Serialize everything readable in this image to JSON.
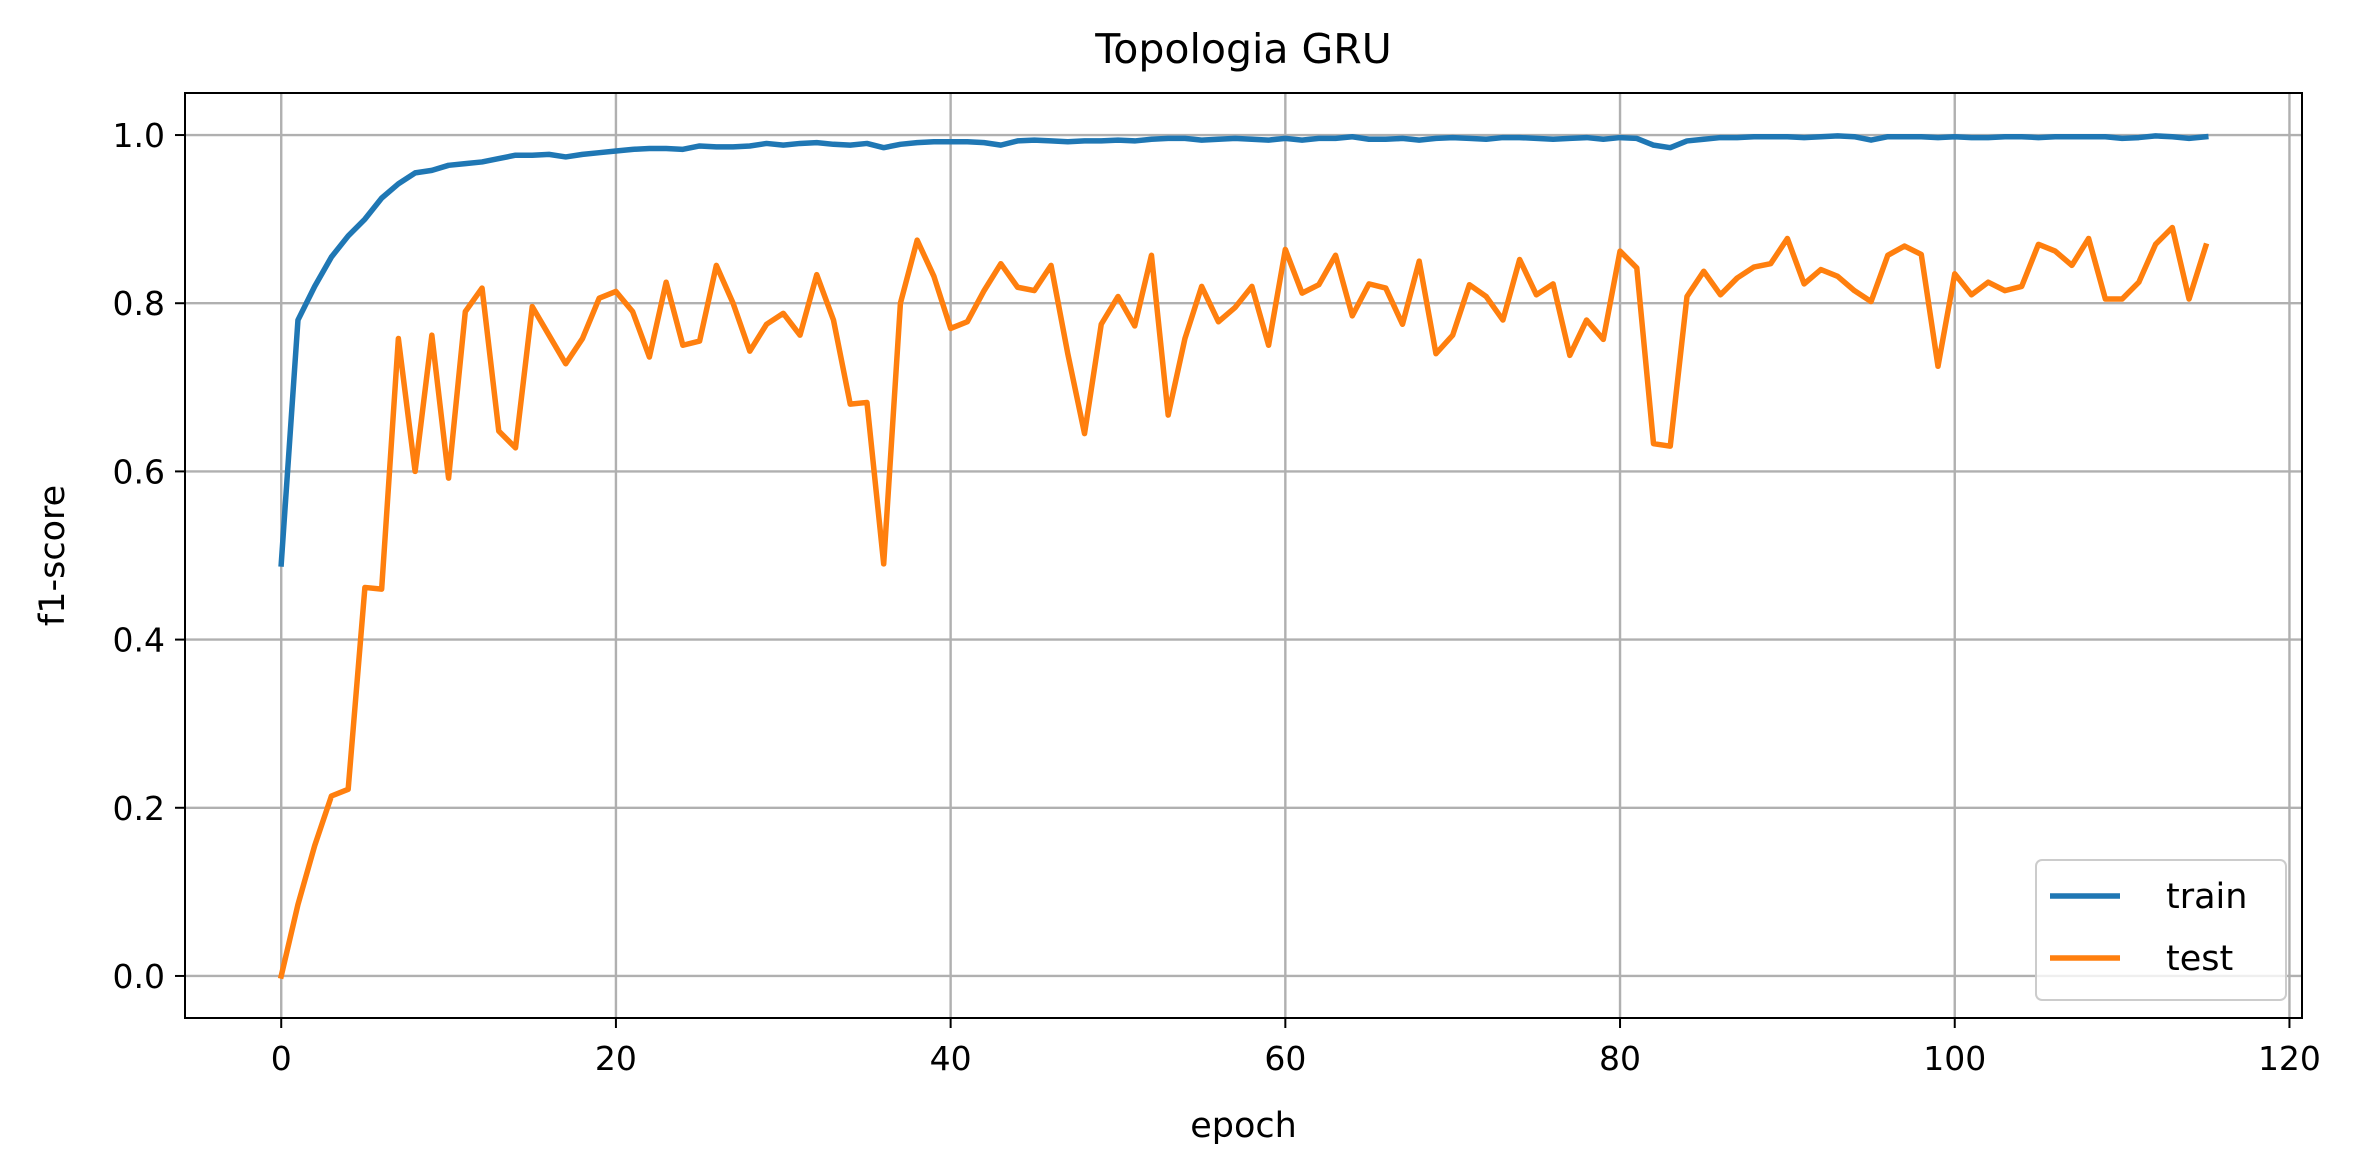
{
  "chart_data": {
    "type": "line",
    "title": "Topologia GRU",
    "xlabel": "epoch",
    "ylabel": "f1-score",
    "xlim": [
      -5.75,
      120.75
    ],
    "ylim": [
      -0.05,
      1.05
    ],
    "xticks": [
      0,
      20,
      40,
      60,
      80,
      100,
      120
    ],
    "yticks": [
      0.0,
      0.2,
      0.4,
      0.6,
      0.8,
      1.0
    ],
    "xtick_labels": [
      "0",
      "20",
      "40",
      "60",
      "80",
      "100",
      "120"
    ],
    "ytick_labels": [
      "0.0",
      "0.2",
      "0.4",
      "0.6",
      "0.8",
      "1.0"
    ],
    "grid": true,
    "legend_position": "lower-right",
    "colors": {
      "train": "#1f77b4",
      "test": "#ff7f0e"
    },
    "series": [
      {
        "name": "train",
        "color": "#1f77b4",
        "values": [
          0.49,
          0.78,
          0.82,
          0.855,
          0.88,
          0.9,
          0.925,
          0.942,
          0.955,
          0.958,
          0.964,
          0.966,
          0.968,
          0.972,
          0.976,
          0.976,
          0.977,
          0.974,
          0.977,
          0.979,
          0.981,
          0.983,
          0.984,
          0.984,
          0.983,
          0.987,
          0.986,
          0.986,
          0.987,
          0.99,
          0.988,
          0.99,
          0.991,
          0.989,
          0.988,
          0.99,
          0.985,
          0.989,
          0.991,
          0.992,
          0.992,
          0.992,
          0.991,
          0.988,
          0.993,
          0.994,
          0.993,
          0.992,
          0.993,
          0.993,
          0.994,
          0.993,
          0.995,
          0.996,
          0.996,
          0.994,
          0.995,
          0.996,
          0.995,
          0.994,
          0.996,
          0.994,
          0.996,
          0.996,
          0.998,
          0.995,
          0.995,
          0.996,
          0.994,
          0.996,
          0.997,
          0.996,
          0.995,
          0.997,
          0.997,
          0.996,
          0.995,
          0.996,
          0.997,
          0.995,
          0.997,
          0.996,
          0.988,
          0.985,
          0.993,
          0.995,
          0.997,
          0.997,
          0.998,
          0.998,
          0.998,
          0.997,
          0.998,
          0.999,
          0.998,
          0.994,
          0.998,
          0.998,
          0.998,
          0.997,
          0.998,
          0.997,
          0.997,
          0.998,
          0.998,
          0.997,
          0.998,
          0.998,
          0.998,
          0.998,
          0.996,
          0.997,
          0.999,
          0.998,
          0.996,
          0.998
        ]
      },
      {
        "name": "test",
        "color": "#ff7f0e",
        "values": [
          0.0,
          0.085,
          0.155,
          0.214,
          0.222,
          0.462,
          0.46,
          0.758,
          0.6,
          0.762,
          0.592,
          0.79,
          0.818,
          0.648,
          0.628,
          0.796,
          0.762,
          0.728,
          0.758,
          0.806,
          0.814,
          0.79,
          0.736,
          0.825,
          0.75,
          0.755,
          0.845,
          0.8,
          0.743,
          0.775,
          0.788,
          0.762,
          0.834,
          0.78,
          0.68,
          0.682,
          0.49,
          0.8,
          0.875,
          0.832,
          0.77,
          0.778,
          0.815,
          0.847,
          0.819,
          0.815,
          0.845,
          0.74,
          0.645,
          0.775,
          0.808,
          0.773,
          0.857,
          0.667,
          0.758,
          0.82,
          0.778,
          0.795,
          0.82,
          0.75,
          0.864,
          0.812,
          0.822,
          0.857,
          0.785,
          0.823,
          0.818,
          0.775,
          0.85,
          0.74,
          0.762,
          0.822,
          0.808,
          0.78,
          0.852,
          0.81,
          0.823,
          0.738,
          0.78,
          0.757,
          0.862,
          0.842,
          0.633,
          0.63,
          0.808,
          0.838,
          0.81,
          0.83,
          0.843,
          0.847,
          0.877,
          0.823,
          0.84,
          0.832,
          0.815,
          0.802,
          0.857,
          0.868,
          0.858,
          0.725,
          0.835,
          0.81,
          0.825,
          0.815,
          0.82,
          0.87,
          0.862,
          0.845,
          0.877,
          0.805,
          0.805,
          0.825,
          0.87,
          0.89,
          0.805,
          0.868
        ]
      }
    ]
  }
}
